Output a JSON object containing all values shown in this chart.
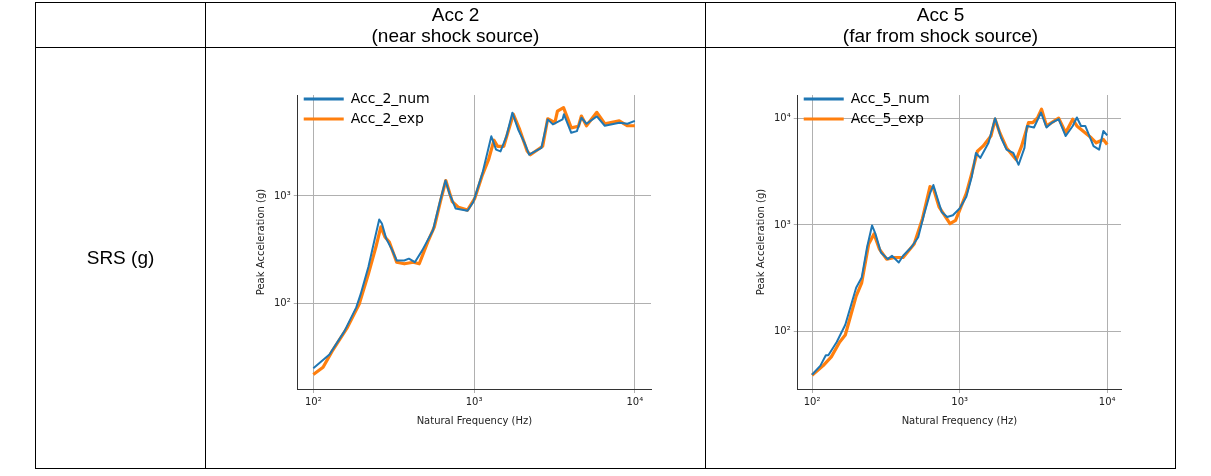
{
  "chart_data": [
    {
      "type": "other",
      "annotations": [
        "SRS (g)"
      ]
    },
    {
      "type": "line",
      "title": "Acc 2\n(near shock source)",
      "xlabel": "Natural Frequency (Hz)",
      "ylabel": "Peak Acceleration (g)",
      "log": "xy",
      "grid": true,
      "legend": "top left",
      "xlim": [
        80,
        12600
      ],
      "ylim": [
        16,
        8700
      ],
      "xticks": [
        {
          "value": 100,
          "label": "10²"
        },
        {
          "value": 1000,
          "label": "10³"
        },
        {
          "value": 10000,
          "label": "10⁴"
        }
      ],
      "yticks": [
        {
          "value": 100,
          "label": "10²"
        },
        {
          "value": 1000,
          "label": "10³"
        }
      ],
      "series": [
        {
          "name": "Acc_2_num",
          "color": "#1f77b4",
          "x": [
            100,
            126,
            156,
            185,
            197,
            220,
            240,
            257,
            267,
            284,
            310,
            330,
            368,
            393,
            428,
            476,
            555,
            617,
            664,
            702,
            767,
            910,
            990,
            1127,
            1280,
            1370,
            1460,
            1590,
            1730,
            1880,
            2060,
            2200,
            2620,
            2870,
            3090,
            3550,
            3620,
            4020,
            4360,
            4650,
            5000,
            5800,
            6500,
            8000,
            9000,
            10000
          ],
          "values": [
            25,
            33.5,
            55,
            92,
            122,
            218,
            387,
            603,
            555,
            401,
            312,
            251,
            251,
            261,
            242,
            312,
            480,
            917,
            1393,
            1059,
            766,
            729,
            885,
            1631,
            3597,
            2699,
            2600,
            3597,
            5957,
            4159,
            3121,
            2420,
            2799,
            5158,
            4634,
            5158,
            5750,
            3870,
            4010,
            5350,
            4700,
            5500,
            4500,
            4800,
            4700,
            5000
          ]
        },
        {
          "name": "Acc_2_exp",
          "color": "#ff7f0e",
          "x": [
            100,
            115,
            131,
            163,
            193,
            220,
            245,
            263,
            279,
            297,
            330,
            368,
            419,
            456,
            520,
            566,
            617,
            667,
            732,
            800,
            910,
            1010,
            1127,
            1230,
            1330,
            1400,
            1530,
            1620,
            1755,
            1920,
            2140,
            2240,
            2670,
            2870,
            3180,
            3300,
            3600,
            4020,
            4460,
            4650,
            5000,
            5800,
            6500,
            8000,
            9000,
            10000
          ],
          "values": [
            21.8,
            25.5,
            36,
            60,
            99,
            188,
            335,
            516,
            416,
            373,
            242,
            234,
            242,
            234,
            387,
            516,
            885,
            1393,
            885,
            783,
            739,
            950,
            1574,
            2175,
            3304,
            2900,
            2900,
            3870,
            5750,
            4159,
            2606,
            2420,
            2900,
            5230,
            4800,
            6160,
            6640,
            4300,
            4460,
            5540,
            4500,
            6000,
            4700,
            5000,
            4500,
            4500
          ]
        }
      ]
    },
    {
      "type": "line",
      "title": "Acc 5\n(far from shock source)",
      "xlabel": "Natural Frequency (Hz)",
      "ylabel": "Peak Acceleration (g)",
      "log": "xy",
      "grid": true,
      "legend": "top left",
      "xlim": [
        80,
        12400
      ],
      "ylim": [
        29,
        16500
      ],
      "xticks": [
        {
          "value": 100,
          "label": "10²"
        },
        {
          "value": 1000,
          "label": "10³"
        },
        {
          "value": 10000,
          "label": "10⁴"
        }
      ],
      "yticks": [
        {
          "value": 100,
          "label": "10²"
        },
        {
          "value": 1000,
          "label": "10³"
        },
        {
          "value": 10000,
          "label": "10⁴"
        }
      ],
      "series": [
        {
          "name": "Acc_5_num",
          "color": "#1f77b4",
          "x": [
            100,
            114,
            124,
            129,
            147,
            168,
            199,
            217,
            236,
            255,
            269,
            293,
            326,
            348,
            387,
            414,
            471,
            524,
            572,
            630,
            664,
            708,
            756,
            823,
            900,
            1000,
            1110,
            1210,
            1290,
            1380,
            1570,
            1740,
            1910,
            2080,
            2310,
            2510,
            2750,
            2860,
            3190,
            3560,
            3880,
            4230,
            4690,
            5230,
            5840,
            6230,
            6650,
            7100,
            8080,
            8820,
            9420,
            10000
          ],
          "values": [
            39.4,
            48,
            60,
            60,
            80,
            116,
            258,
            321,
            617,
            989,
            824,
            552,
            478,
            514,
            445,
            514,
            617,
            767,
            1230,
            1972,
            2366,
            1770,
            1324,
            1187,
            1230,
            1423,
            1836,
            2840,
            4730,
            4240,
            5880,
            10000,
            6560,
            5080,
            4730,
            3660,
            5270,
            8460,
            8180,
            11300,
            8180,
            9100,
            9800,
            6810,
            8460,
            10150,
            8460,
            8460,
            5470,
            5080,
            7590,
            6900
          ]
        },
        {
          "name": "Acc_5_exp",
          "color": "#ff7f0e",
          "x": [
            100,
            119,
            135,
            154,
            168,
            199,
            217,
            242,
            263,
            286,
            320,
            364,
            414,
            492,
            560,
            630,
            664,
            725,
            860,
            939,
            1110,
            1210,
            1320,
            1440,
            1630,
            1740,
            1870,
            2080,
            2420,
            2630,
            2930,
            3130,
            3380,
            3590,
            3880,
            4690,
            5230,
            5840,
            6230,
            7790,
            8420,
            9420,
            10000
          ],
          "values": [
            39,
            48,
            58,
            80,
            93,
            215,
            287,
            662,
            824,
            594,
            478,
            495,
            495,
            662,
            1143,
            2286,
            2203,
            1477,
            1026,
            1104,
            1972,
            3055,
            4900,
            5470,
            6810,
            9780,
            7310,
            5270,
            4080,
            5470,
            9100,
            9100,
            10150,
            12160,
            8460,
            10000,
            7310,
            9780,
            8460,
            6560,
            5880,
            6320,
            5680
          ]
        }
      ]
    }
  ]
}
